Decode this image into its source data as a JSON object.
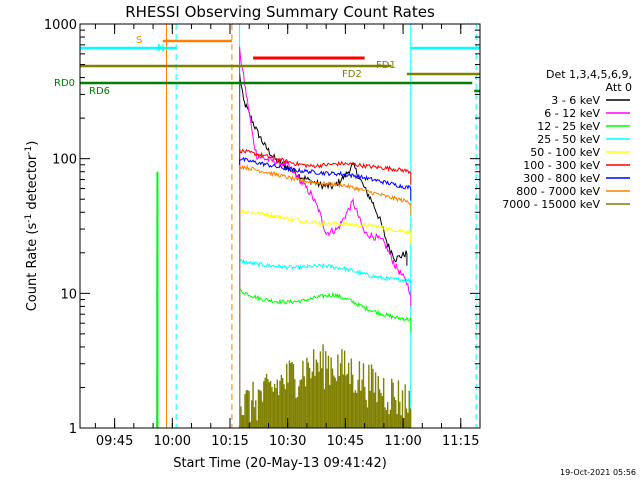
{
  "chart_data": {
    "type": "line",
    "title": "RHESSI Observing Summary Count Rates",
    "xlabel": "Start Time (20-May-13 09:41:42)",
    "ylabel_parts": [
      "Count Rate (s",
      "-1",
      " detector",
      "-1",
      ")"
    ],
    "yscale": "log",
    "ylim": [
      1,
      1000
    ],
    "xlim_minutes": [
      576,
      680
    ],
    "x_ticks": [
      {
        "minute": 585,
        "label": "09:45"
      },
      {
        "minute": 600,
        "label": "10:00"
      },
      {
        "minute": 615,
        "label": "10:15"
      },
      {
        "minute": 630,
        "label": "10:30"
      },
      {
        "minute": 645,
        "label": "10:45"
      },
      {
        "minute": 660,
        "label": "11:00"
      },
      {
        "minute": 675,
        "label": "11:15"
      }
    ],
    "y_ticks": [
      {
        "value": 1,
        "label": "1"
      },
      {
        "value": 10,
        "label": "10"
      },
      {
        "value": 100,
        "label": "100"
      },
      {
        "value": 1000,
        "label": "1000"
      }
    ],
    "legend": {
      "header": [
        "Det 1,3,4,5,6,9,",
        "Att 0"
      ],
      "position": "right"
    },
    "timestamp": "19-Oct-2021 05:56",
    "series": [
      {
        "name": "3 - 6 keV",
        "color": "#000000",
        "x": [
          617.5,
          618.5,
          620,
          622,
          624,
          627,
          630,
          633,
          636,
          639,
          642,
          645,
          647,
          650,
          652,
          654,
          656,
          658,
          661
        ],
        "y": [
          420,
          270,
          215,
          160,
          125,
          97,
          86,
          75,
          68,
          63,
          62,
          75,
          90,
          60,
          48,
          35,
          23,
          18,
          20
        ]
      },
      {
        "name": "6 - 12 keV",
        "color": "#ff00ff",
        "x": [
          617.5,
          619,
          620,
          621,
          622,
          624,
          627,
          630,
          633,
          636,
          638,
          640,
          643,
          647,
          650,
          653,
          655,
          658,
          661,
          662
        ],
        "y": [
          640,
          330,
          220,
          140,
          105,
          100,
          95,
          90,
          70,
          55,
          42,
          28,
          30,
          48,
          28,
          26,
          24,
          16,
          12,
          10
        ]
      },
      {
        "name": "12 - 25 keV",
        "color": "#00ff00",
        "x": [
          617.5,
          620,
          623,
          627,
          630,
          634,
          638,
          642,
          646,
          650,
          654,
          658,
          662
        ],
        "y": [
          10.5,
          9.8,
          9.1,
          8.7,
          8.6,
          8.8,
          9.4,
          9.8,
          8.9,
          7.8,
          7.1,
          6.6,
          6.4
        ]
      },
      {
        "name": "25 - 50 keV",
        "color": "#00ffff",
        "x": [
          617.5,
          620,
          624,
          628,
          632,
          636,
          640,
          644,
          648,
          652,
          656,
          660,
          662
        ],
        "y": [
          17.5,
          16.8,
          16.2,
          15.8,
          15.5,
          15.8,
          16.0,
          15.4,
          14.4,
          13.4,
          12.8,
          12.6,
          12.4
        ]
      },
      {
        "name": "50 - 100 keV",
        "color": "#ffff00",
        "x": [
          617.5,
          620,
          624,
          628,
          632,
          636,
          640,
          644,
          648,
          652,
          656,
          660,
          662
        ],
        "y": [
          41,
          40,
          39,
          37,
          35,
          34,
          33,
          33,
          32,
          32,
          30,
          29,
          29
        ]
      },
      {
        "name": "100 - 300 keV",
        "color": "#ff0000",
        "x": [
          617.5,
          620,
          624,
          628,
          632,
          636,
          640,
          644,
          648,
          652,
          656,
          660,
          662
        ],
        "y": [
          115,
          111,
          105,
          98,
          92,
          88,
          90,
          92,
          90,
          87,
          85,
          82,
          80
        ]
      },
      {
        "name": "300 - 800 keV",
        "color": "#0000ff",
        "x": [
          617.5,
          620,
          624,
          628,
          632,
          636,
          640,
          644,
          648,
          652,
          656,
          660,
          662
        ],
        "y": [
          100,
          96,
          91,
          86,
          82,
          80,
          78,
          77,
          74,
          70,
          66,
          62,
          61
        ]
      },
      {
        "name": "800 - 7000 keV",
        "color": "#ff8000",
        "x": [
          617.5,
          620,
          624,
          628,
          632,
          636,
          640,
          644,
          648,
          652,
          656,
          660,
          662
        ],
        "y": [
          88,
          85,
          80,
          75,
          70,
          67,
          65,
          64,
          60,
          56,
          52,
          49,
          47
        ]
      },
      {
        "name": "7000 - 15000 keV",
        "color": "#808000",
        "x": [
          617.5,
          620,
          624,
          628,
          632,
          636,
          640,
          644,
          648,
          652,
          656,
          660,
          662
        ],
        "y": [
          1.25,
          1.3,
          1.5,
          1.8,
          2.2,
          2.4,
          2.6,
          2.4,
          2.1,
          1.8,
          1.6,
          1.4,
          1.3
        ]
      }
    ],
    "burst_minute": 596,
    "burst_values": [
      1.5,
      2.5,
      10,
      20,
      40,
      60,
      80
    ],
    "segment_bars": [
      {
        "label": "S",
        "color": "#ff8000",
        "x_start": 597.5,
        "x_end": 615.5,
        "y": 1.74
      },
      {
        "label": "N",
        "color": "#00ffff",
        "x_start": 576,
        "x_end": 601,
        "y": 1.65
      },
      {
        "label": "N",
        "color": "#00ffff",
        "x_start": 662,
        "x_end": 680,
        "y": 1.65
      },
      {
        "label": "FD1",
        "color": "#808000",
        "x_start": 576,
        "x_end": 657,
        "y": 1.49
      },
      {
        "label": "FD2",
        "color": "#808000",
        "x_start": 661,
        "x_end": 680,
        "y": 1.425
      },
      {
        "label": "RD0",
        "color": "#008000",
        "x_start": 576,
        "x_end": 678,
        "y": 1.33
      },
      {
        "label": "RD6",
        "color": "#008000",
        "x_start": 678.5,
        "x_end": 680,
        "y": 1.29
      },
      {
        "label": "",
        "color": "#ff0000",
        "x_start": 621,
        "x_end": 650,
        "y": 1.57
      }
    ],
    "vertical_markers": [
      {
        "minute": 576,
        "color": "#00ffff",
        "style": "solid"
      },
      {
        "minute": 598.5,
        "color": "#ff8000",
        "style": "solid"
      },
      {
        "minute": 601,
        "color": "#00ffff",
        "style": "dashed"
      },
      {
        "minute": 615.5,
        "color": "#ff8000",
        "style": "dashed"
      },
      {
        "minute": 617.5,
        "color": "#00ffff",
        "style": "solid"
      },
      {
        "minute": 662,
        "color": "#00ffff",
        "style": "solid"
      },
      {
        "minute": 679,
        "color": "#00ffff",
        "style": "dashed"
      }
    ]
  }
}
